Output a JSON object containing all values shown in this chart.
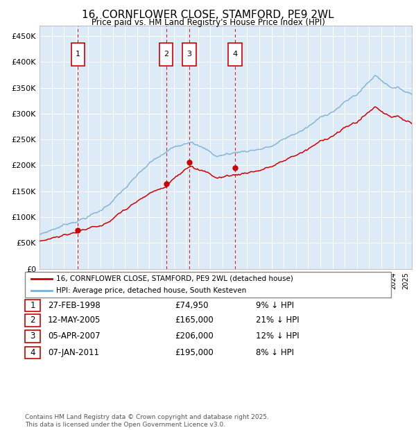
{
  "title": "16, CORNFLOWER CLOSE, STAMFORD, PE9 2WL",
  "subtitle": "Price paid vs. HM Land Registry's House Price Index (HPI)",
  "ytick_vals": [
    0,
    50000,
    100000,
    150000,
    200000,
    250000,
    300000,
    350000,
    400000,
    450000
  ],
  "ylim": [
    0,
    470000
  ],
  "xlim_start": 1995.0,
  "xlim_end": 2025.5,
  "transactions": [
    {
      "num": 1,
      "date_str": "27-FEB-1998",
      "price": 74950,
      "year": 1998.15
    },
    {
      "num": 2,
      "date_str": "12-MAY-2005",
      "price": 165000,
      "year": 2005.37
    },
    {
      "num": 3,
      "date_str": "05-APR-2007",
      "price": 206000,
      "year": 2007.27
    },
    {
      "num": 4,
      "date_str": "07-JAN-2011",
      "price": 195000,
      "year": 2011.02
    }
  ],
  "legend_label_red": "16, CORNFLOWER CLOSE, STAMFORD, PE9 2WL (detached house)",
  "legend_label_blue": "HPI: Average price, detached house, South Kesteven",
  "footer": "Contains HM Land Registry data © Crown copyright and database right 2025.\nThis data is licensed under the Open Government Licence v3.0.",
  "red_color": "#cc0000",
  "blue_color": "#7ab0d4",
  "background_color": "#ddeaf7",
  "grid_color": "#ffffff",
  "dashed_color": "#cc0000",
  "table_rows": [
    {
      "num": 1,
      "date": "27-FEB-1998",
      "price": "£74,950",
      "pct": "9% ↓ HPI"
    },
    {
      "num": 2,
      "date": "12-MAY-2005",
      "price": "£165,000",
      "pct": "21% ↓ HPI"
    },
    {
      "num": 3,
      "date": "05-APR-2007",
      "price": "£206,000",
      "pct": "12% ↓ HPI"
    },
    {
      "num": 4,
      "date": "07-JAN-2011",
      "price": "£195,000",
      "pct": "8% ↓ HPI"
    }
  ]
}
